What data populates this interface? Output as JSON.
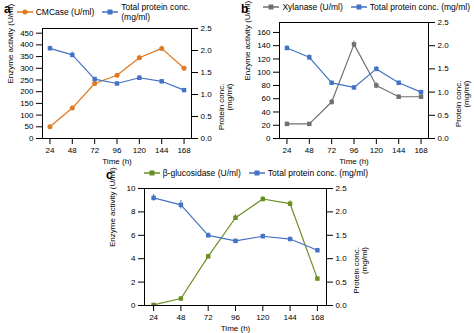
{
  "chart_data": [
    {
      "type": "line",
      "title": "a",
      "xlabel": "Time (h)",
      "ylabel": "Enzyme activity (U/ml)",
      "y2label": "Protein conc.\n(mg/ml)",
      "x": [
        24,
        48,
        72,
        96,
        120,
        144,
        168
      ],
      "xlim": [
        16,
        176
      ],
      "xticks": [
        24,
        48,
        72,
        96,
        120,
        144,
        168
      ],
      "ylim": [
        0,
        470
      ],
      "yticks": [
        0,
        50,
        100,
        150,
        200,
        250,
        300,
        350,
        400,
        450
      ],
      "y2lim": [
        0,
        2.5
      ],
      "y2ticks": [
        {
          "value": 0,
          "label": "0.0"
        },
        0.5,
        {
          "value": 1,
          "label": "1.0"
        },
        1.5,
        {
          "value": 2,
          "label": "2.0"
        },
        2.5
      ],
      "legend": "upper left",
      "series": [
        {
          "name": "CMCase (U/ml)",
          "color": "#E07820",
          "marker": "circle",
          "line_style": "solid",
          "values": [
            50,
            130,
            235,
            270,
            345,
            385,
            300
          ],
          "errors": [
            4,
            7,
            8,
            7,
            10,
            9,
            7
          ]
        },
        {
          "name": "Total protein conc.\n(mg/ml)",
          "color": "#4472C4",
          "marker": "square",
          "line_style": "solid",
          "axis": "y2",
          "values": [
            2.05,
            1.9,
            1.35,
            1.25,
            1.38,
            1.3,
            1.1
          ],
          "errors": [
            0.05,
            0.06,
            0.04,
            0.04,
            0.05,
            0.04,
            0.03
          ]
        }
      ]
    },
    {
      "type": "line",
      "title": "b",
      "xlabel": "Time (h)",
      "ylabel": "Enzyme activity (U/ml)",
      "y2label": "Protein conc.\n(mg/ml)",
      "x": [
        24,
        48,
        72,
        96,
        120,
        144,
        168
      ],
      "xlim": [
        16,
        176
      ],
      "xticks": [
        24,
        48,
        72,
        96,
        120,
        144,
        168
      ],
      "ylim": [
        0,
        175
      ],
      "yticks": [
        0,
        20,
        40,
        60,
        80,
        100,
        120,
        140,
        160
      ],
      "y2lim": [
        0,
        2.5
      ],
      "y2ticks": [
        {
          "value": 0,
          "label": "0.0"
        },
        0.5,
        {
          "value": 1,
          "label": "1.0"
        },
        1.5,
        {
          "value": 2,
          "label": "2.0"
        },
        2.5
      ],
      "legend": "upper right",
      "series": [
        {
          "name": "Xylanase (U/ml)",
          "color": "#707070",
          "marker": "square",
          "line_style": "solid",
          "values": [
            22,
            22,
            55,
            142,
            80,
            63,
            63
          ],
          "errors": [
            3,
            2,
            4,
            5,
            4,
            3,
            3
          ]
        },
        {
          "name": "Total protein conc. (mg/ml)",
          "color": "#4472C4",
          "marker": "square",
          "line_style": "solid",
          "axis": "y2",
          "values": [
            1.95,
            1.75,
            1.2,
            1.1,
            1.5,
            1.2,
            1.0
          ],
          "errors": [
            0.05,
            0.06,
            0.04,
            0.04,
            0.05,
            0.04,
            0.03
          ]
        }
      ]
    },
    {
      "type": "line",
      "title": "c",
      "xlabel": "Time (h)",
      "ylabel": "Enzyme activity (U/ml)",
      "y2label": "Protein conc.\n(mg/ml)",
      "x": [
        24,
        48,
        72,
        96,
        120,
        144,
        168
      ],
      "xlim": [
        16,
        176
      ],
      "xticks": [
        24,
        48,
        72,
        96,
        120,
        144,
        168
      ],
      "ylim": [
        0,
        10
      ],
      "yticks": [
        0,
        2,
        4,
        6,
        8,
        10
      ],
      "y2lim": [
        0,
        2.5
      ],
      "y2ticks": [
        {
          "value": 0,
          "label": "0.0"
        },
        0.5,
        {
          "value": 1,
          "label": "1.0"
        },
        1.5,
        {
          "value": 2,
          "label": "2.0"
        },
        2.5
      ],
      "legend": "upper right",
      "series": [
        {
          "name": "β-glucosidase (U/ml)",
          "color": "#6B8E23",
          "marker": "square",
          "line_style": "solid",
          "values": [
            0.05,
            0.6,
            4.2,
            7.5,
            9.1,
            8.7,
            2.3
          ],
          "errors": [
            0.04,
            0.08,
            0.18,
            0.25,
            0.22,
            0.25,
            0.08
          ]
        },
        {
          "name": "Total protein conc. (mg/ml)",
          "color": "#4472C4",
          "marker": "square",
          "line_style": "solid",
          "axis": "y2",
          "values": [
            2.3,
            2.15,
            1.5,
            1.38,
            1.48,
            1.42,
            1.18
          ],
          "errors": [
            0.07,
            0.09,
            0.05,
            0.04,
            0.05,
            0.04,
            0.04
          ]
        }
      ]
    }
  ]
}
